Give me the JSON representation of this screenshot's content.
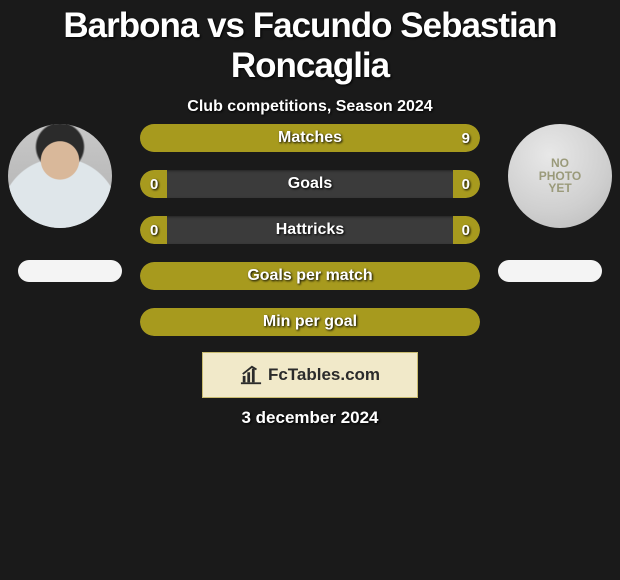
{
  "title": "Barbona vs Facundo Sebastian Roncaglia",
  "subtitle": "Club competitions, Season 2024",
  "date": "3 december 2024",
  "brand": "FcTables.com",
  "colors": {
    "bar_fill": "#a79a1e",
    "bar_track": "#3b3b3b",
    "background": "#1a1a1a",
    "brand_box_bg": "#f1e9c9",
    "brand_box_border": "#c9bb6f",
    "pill_bg": "#f4f4f4"
  },
  "players": {
    "left": {
      "name": "Barbona",
      "has_photo": true
    },
    "right": {
      "name": "Facundo Sebastian Roncaglia",
      "has_photo": false,
      "placeholder_text": "NO PHOTO YET"
    }
  },
  "rows": [
    {
      "label": "Matches",
      "left": "",
      "right": "9",
      "left_pct": 0,
      "right_pct": 100
    },
    {
      "label": "Goals",
      "left": "0",
      "right": "0",
      "left_pct": 8,
      "right_pct": 8
    },
    {
      "label": "Hattricks",
      "left": "0",
      "right": "0",
      "left_pct": 8,
      "right_pct": 8
    },
    {
      "label": "Goals per match",
      "left": "",
      "right": "",
      "left_pct": 100,
      "right_pct": 0
    },
    {
      "label": "Min per goal",
      "left": "",
      "right": "",
      "left_pct": 100,
      "right_pct": 0
    }
  ]
}
